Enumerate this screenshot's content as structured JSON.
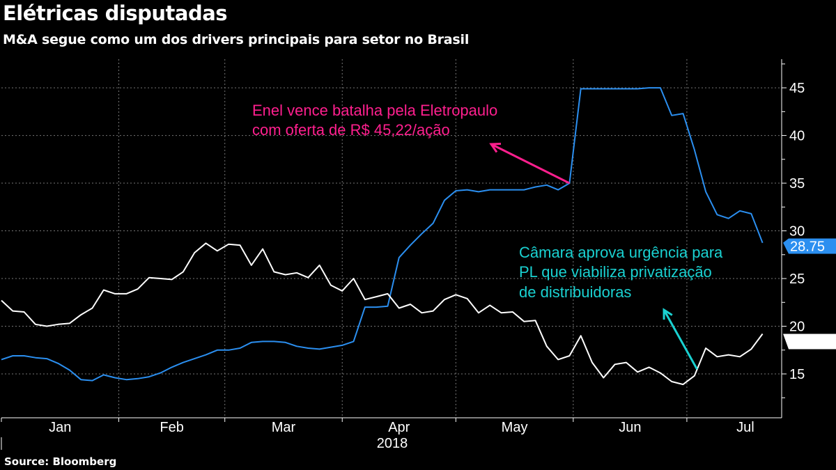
{
  "title": "Elétricas disputadas",
  "subtitle": "M&A segue como um dos drivers principais para setor no Brasil",
  "source": "Source: Bloomberg",
  "chart_data": {
    "type": "line",
    "title": "Elétricas disputadas",
    "subtitle": "M&A segue como um dos drivers principais para setor no Brasil",
    "xlabel": "2018",
    "ylabel": "",
    "x_tick_labels": [
      "Jan",
      "Feb",
      "Mar",
      "Apr",
      "May",
      "Jun",
      "Jul"
    ],
    "y_ticks": [
      15,
      20,
      25,
      30,
      35,
      40,
      45
    ],
    "ylim": [
      10.4,
      48
    ],
    "grid": true,
    "y_axis_side": "right",
    "x": [
      "2018-01-01",
      "2018-01-04",
      "2018-01-07",
      "2018-01-10",
      "2018-01-13",
      "2018-01-16",
      "2018-01-19",
      "2018-01-22",
      "2018-01-25",
      "2018-01-28",
      "2018-01-31",
      "2018-02-03",
      "2018-02-06",
      "2018-02-09",
      "2018-02-12",
      "2018-02-15",
      "2018-02-18",
      "2018-02-21",
      "2018-02-24",
      "2018-02-27",
      "2018-03-02",
      "2018-03-05",
      "2018-03-08",
      "2018-03-11",
      "2018-03-14",
      "2018-03-17",
      "2018-03-20",
      "2018-03-23",
      "2018-03-26",
      "2018-03-29",
      "2018-04-01",
      "2018-04-04",
      "2018-04-07",
      "2018-04-10",
      "2018-04-13",
      "2018-04-16",
      "2018-04-19",
      "2018-04-22",
      "2018-04-25",
      "2018-04-28",
      "2018-05-01",
      "2018-05-04",
      "2018-05-07",
      "2018-05-10",
      "2018-05-13",
      "2018-05-16",
      "2018-05-19",
      "2018-05-22",
      "2018-05-25",
      "2018-05-28",
      "2018-05-31",
      "2018-06-03",
      "2018-06-06",
      "2018-06-09",
      "2018-06-12",
      "2018-06-15",
      "2018-06-18",
      "2018-06-21",
      "2018-06-24",
      "2018-06-27",
      "2018-06-30",
      "2018-07-03",
      "2018-07-06",
      "2018-07-09",
      "2018-07-12",
      "2018-07-15",
      "2018-07-18",
      "2018-07-21"
    ],
    "series": [
      {
        "color": "#2b8ff0",
        "last_value_label": "28.75",
        "values": [
          16.5,
          16.9,
          16.9,
          16.7,
          16.6,
          16.1,
          15.4,
          14.4,
          14.3,
          14.9,
          14.6,
          14.4,
          14.5,
          14.7,
          15.1,
          15.7,
          16.2,
          16.6,
          17.0,
          17.5,
          17.5,
          17.7,
          18.3,
          18.4,
          18.4,
          18.3,
          17.9,
          17.7,
          17.6,
          17.8,
          18.0,
          18.4,
          22.0,
          22.0,
          22.1,
          27.2,
          28.5,
          29.7,
          30.8,
          33.2,
          34.2,
          34.3,
          34.1,
          34.3,
          34.3,
          34.3,
          34.3,
          34.6,
          34.8,
          34.3,
          35.0,
          44.9,
          44.9,
          44.9,
          44.9,
          44.9,
          44.9,
          45.0,
          45.0,
          42.1,
          42.3,
          38.5,
          34.1,
          31.7,
          31.3,
          32.1,
          31.8,
          28.75
        ]
      },
      {
        "color": "#ffffff",
        "last_value_label": "19.20",
        "values": [
          22.7,
          21.6,
          21.5,
          20.2,
          20.0,
          20.2,
          20.3,
          21.2,
          21.9,
          23.8,
          23.4,
          23.4,
          23.9,
          25.1,
          25.0,
          24.9,
          25.7,
          27.7,
          28.7,
          27.9,
          28.6,
          28.5,
          26.4,
          28.1,
          25.7,
          25.4,
          25.6,
          25.1,
          26.4,
          24.3,
          23.7,
          25.0,
          22.8,
          23.1,
          23.4,
          21.9,
          22.3,
          21.4,
          21.6,
          22.8,
          23.3,
          22.9,
          21.4,
          22.2,
          21.4,
          21.5,
          20.5,
          20.6,
          17.9,
          16.5,
          16.9,
          19.0,
          16.2,
          14.6,
          16.0,
          16.2,
          15.2,
          15.7,
          15.1,
          14.2,
          13.9,
          14.8,
          17.7,
          16.8,
          17.0,
          16.8,
          17.6,
          19.2
        ]
      }
    ],
    "annotations": [
      {
        "lines": [
          "Enel vence batalha pela Eletropaulo",
          "com oferta de R$ 45,22/ação"
        ],
        "color": "#ff1f8e",
        "points_to": {
          "x": "2018-05-31",
          "y": 35.0
        }
      },
      {
        "lines": [
          "Câmara aprova urgência para",
          "PL que viabiliza privatização",
          "de distribuidoras"
        ],
        "color": "#1ad1d1",
        "points_to": {
          "x": "2018-06-30",
          "y": 15.5
        }
      }
    ]
  }
}
